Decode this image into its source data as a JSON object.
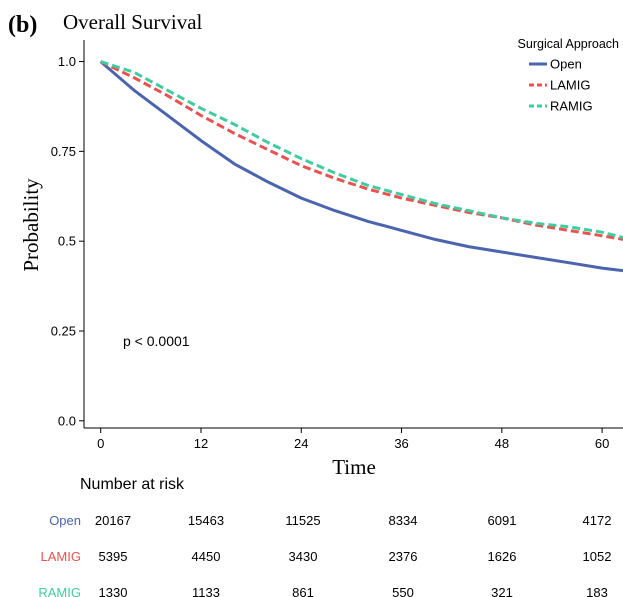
{
  "panel_label": "(b)",
  "colors": {
    "Open": "#4a64ae",
    "LAMIG": "#e8524f",
    "RAMIG": "#3fcc9f",
    "axis": "#000000"
  },
  "chart_data": {
    "type": "line",
    "title": "Overall Survival",
    "xlabel": "Time",
    "ylabel": "Probability",
    "xlim": [
      -2,
      62.5
    ],
    "ylim": [
      -0.02,
      1.06
    ],
    "x_ticks": [
      0,
      12,
      24,
      36,
      48,
      60
    ],
    "x_tick_labels": [
      "0",
      "12",
      "24",
      "36",
      "48",
      "60"
    ],
    "y_ticks": [
      0,
      0.25,
      0.5,
      0.75,
      1
    ],
    "y_tick_labels": [
      "0.0",
      "0.25",
      "0.5",
      "0.75",
      "1.0"
    ],
    "legend": {
      "title": "Surgical Approach",
      "position": "top-right",
      "entries": [
        "Open",
        "LAMIG",
        "RAMIG"
      ]
    },
    "annotation": "p < 0.0001",
    "series": [
      {
        "name": "Open",
        "style": "solid",
        "x": [
          0,
          4,
          8,
          12,
          16,
          20,
          24,
          28,
          32,
          36,
          40,
          44,
          48,
          52,
          56,
          60,
          62.5
        ],
        "y": [
          1.0,
          0.92,
          0.85,
          0.78,
          0.715,
          0.665,
          0.62,
          0.585,
          0.555,
          0.53,
          0.505,
          0.485,
          0.47,
          0.455,
          0.44,
          0.425,
          0.418
        ]
      },
      {
        "name": "LAMIG",
        "style": "dashed",
        "x": [
          0,
          4,
          8,
          12,
          16,
          20,
          24,
          28,
          32,
          36,
          40,
          44,
          48,
          52,
          56,
          60,
          62.5
        ],
        "y": [
          1.0,
          0.955,
          0.905,
          0.85,
          0.8,
          0.755,
          0.71,
          0.675,
          0.645,
          0.62,
          0.6,
          0.58,
          0.565,
          0.545,
          0.53,
          0.515,
          0.505
        ]
      },
      {
        "name": "RAMIG",
        "style": "dashed",
        "x": [
          0,
          4,
          8,
          12,
          16,
          20,
          24,
          28,
          32,
          36,
          40,
          44,
          48,
          52,
          56,
          60,
          62.5
        ],
        "y": [
          1.0,
          0.97,
          0.92,
          0.87,
          0.825,
          0.775,
          0.73,
          0.69,
          0.655,
          0.63,
          0.605,
          0.585,
          0.565,
          0.55,
          0.54,
          0.525,
          0.51
        ]
      }
    ]
  },
  "risk_table": {
    "title": "Number at risk",
    "time_points": [
      0,
      12,
      24,
      36,
      48,
      60
    ],
    "rows": [
      {
        "group": "Open",
        "values": [
          "20167",
          "15463",
          "11525",
          "8334",
          "6091",
          "4172"
        ]
      },
      {
        "group": "LAMIG",
        "values": [
          "5395",
          "4450",
          "3430",
          "2376",
          "1626",
          "1052"
        ]
      },
      {
        "group": "RAMIG",
        "values": [
          "1330",
          "1133",
          "861",
          "550",
          "321",
          "183"
        ]
      }
    ]
  }
}
